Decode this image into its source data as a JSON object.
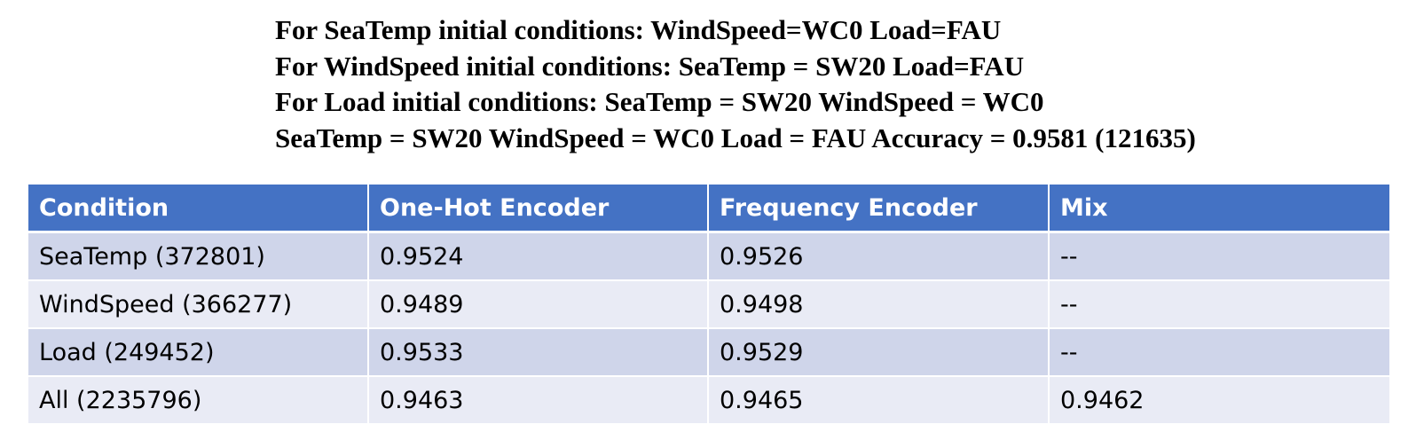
{
  "header_lines": [
    "For SeaTemp initial conditions: WindSpeed=WC0 Load=FAU",
    "For WindSpeed initial conditions: SeaTemp = SW20 Load=FAU",
    "For Load initial conditions: SeaTemp = SW20 WindSpeed = WC0",
    "SeaTemp = SW20 WindSpeed = WC0 Load = FAU Accuracy = 0.9581 (121635)"
  ],
  "table": {
    "columns": [
      "Condition",
      "One-Hot Encoder",
      "Frequency Encoder",
      "Mix"
    ],
    "rows": [
      [
        "SeaTemp (372801)",
        "0.9524",
        "0.9526",
        "--"
      ],
      [
        "WindSpeed (366277)",
        "0.9489",
        "0.9498",
        "--"
      ],
      [
        "Load (249452)",
        "0.9533",
        "0.9529",
        "--"
      ],
      [
        "All (2235796)",
        "0.9463",
        "0.9465",
        "0.9462"
      ]
    ]
  },
  "colors": {
    "header_fill": "#4472c4",
    "row_band_dark": "#cfd5ea",
    "row_band_light": "#e9ebf5"
  }
}
